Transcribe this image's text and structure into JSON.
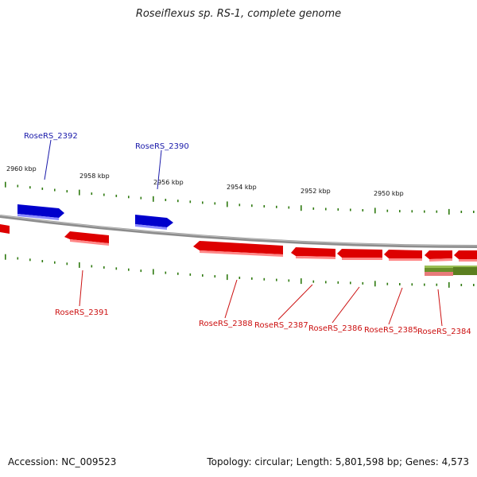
{
  "title": "Roseiflexus sp. RS-1, complete genome",
  "footer": {
    "accession": "Accession: NC_009523",
    "summary": "Topology: circular; Length: 5,801,598 bp; Genes: 4,573"
  },
  "colors": {
    "forward_gene": "#0000cc",
    "reverse_gene": "#dd0000",
    "gene_label_forward": "#1a1aaa",
    "gene_label_reverse": "#cc1111",
    "tick": "#2f7a10",
    "backbone": "#8c8c8c",
    "rna_feature": "#6a8f2a"
  },
  "scale_labels": [
    "2960 kbp",
    "2958 kbp",
    "2956 kbp",
    "2954 kbp",
    "2952 kbp",
    "2950 kbp"
  ],
  "genes": [
    {
      "id": "RoseRS_2392",
      "strand": "+"
    },
    {
      "id": "RoseRS_2390",
      "strand": "+"
    },
    {
      "id": "RoseRS_2391",
      "strand": "-"
    },
    {
      "id": "RoseRS_2388",
      "strand": "-"
    },
    {
      "id": "RoseRS_2387",
      "strand": "-"
    },
    {
      "id": "RoseRS_2386",
      "strand": "-"
    },
    {
      "id": "RoseRS_2385",
      "strand": "-"
    },
    {
      "id": "RoseRS_2384",
      "strand": "-"
    }
  ]
}
